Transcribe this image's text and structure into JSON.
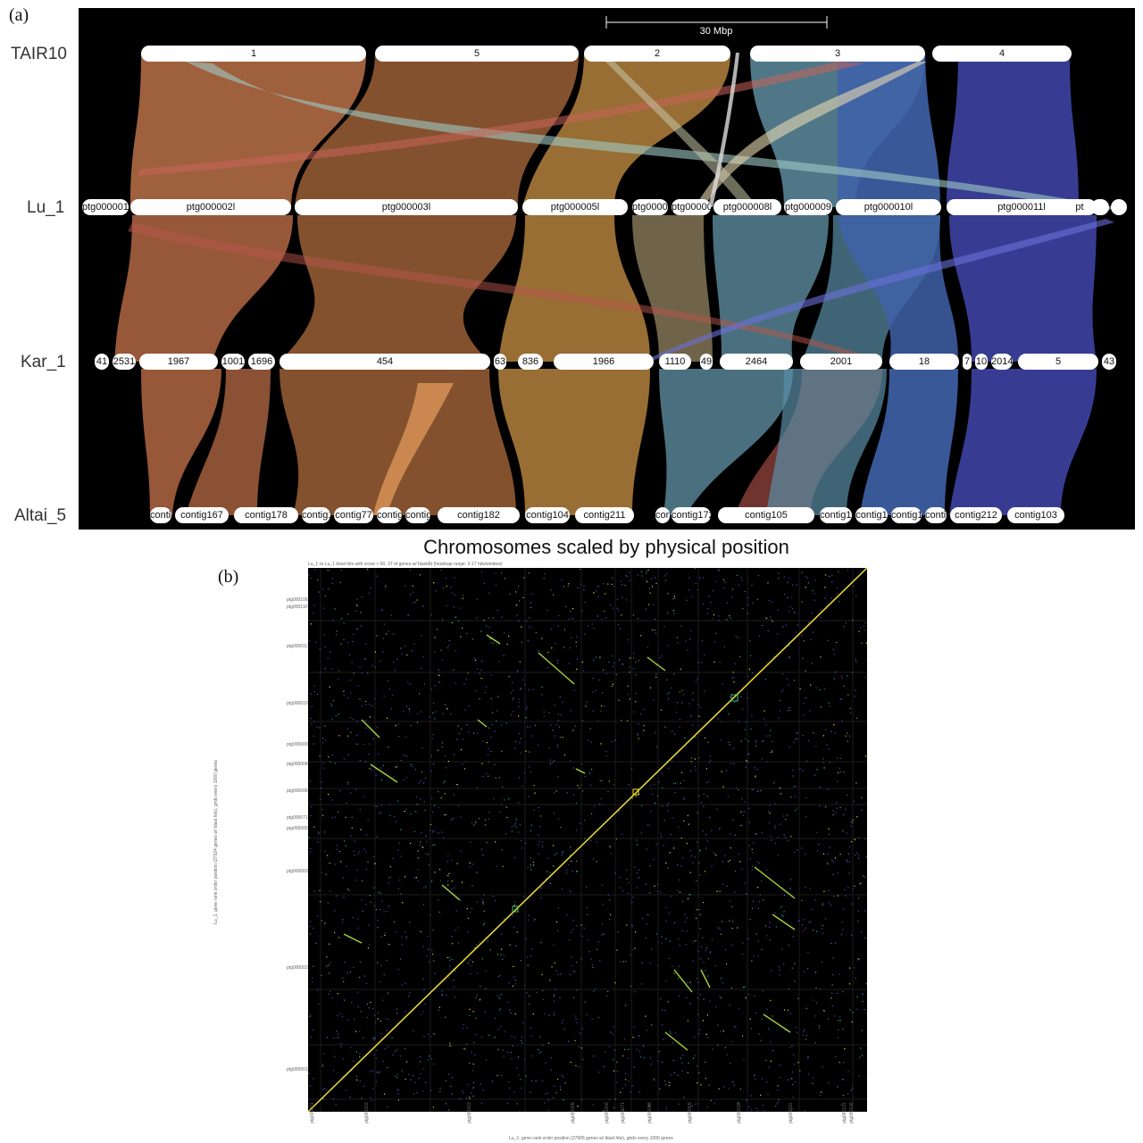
{
  "panel_a": {
    "label": "(a)",
    "scale_bar": "30 Mbp",
    "rows": [
      {
        "name": "TAIR10",
        "contigs": [
          "1",
          "5",
          "2",
          "3",
          "4"
        ]
      },
      {
        "name": "Lu_1",
        "contigs": [
          "ptg000001",
          "ptg000002l",
          "ptg000003l",
          "ptg000005l",
          "ptg00000",
          "ptg00000",
          "ptg000008l",
          "ptg000009",
          "ptg000010l",
          "ptg000011l",
          "pt",
          "",
          ""
        ]
      },
      {
        "name": "Kar_1",
        "contigs": [
          "41",
          "2531",
          "1967",
          "1001",
          "1696",
          "454",
          "63",
          "836",
          "1966",
          "1110",
          "49",
          "2464",
          "2001",
          "18",
          "7",
          "10",
          "2014",
          "5",
          "43"
        ]
      },
      {
        "name": "Altai_5",
        "contigs": [
          "contig1",
          "contig167",
          "contig178",
          "contig14",
          "contig77",
          "contig",
          "contig1",
          "contig182",
          "contig104",
          "contig211",
          "contig6",
          "contig172",
          "contig105",
          "contig18",
          "contig1",
          "contig1",
          "contig1",
          "contig212",
          "contig103"
        ]
      }
    ]
  },
  "panel_b": {
    "label": "(b)",
    "title": "Chromosomes scaled by physical position",
    "top_caption": "Lu_1 vs Lu_1 blast hits with score > 50, 37 of genes w/ blastdb (heatmap range: 2-17 hits/window)",
    "y_axis_label": "Lu_1: gene rank order position (27924 genes w/ blast hits), grids every 1000 genes",
    "x_axis_label": "Lu_1: gene rank order position (27665 genes w/ blast hits), grids every 1000 genes",
    "y_ticks": [
      "ptg000106",
      "ptg000110",
      "ptg000011",
      "ptg000010",
      "ptg000009",
      "ptg000008",
      "ptg000006",
      "ptg000071",
      "ptg000005",
      "ptg000003",
      "ptg000002",
      "ptg000001"
    ],
    "x_ticks": [
      "ptg000001",
      "ptg000002",
      "ptg000003",
      "ptg000005",
      "ptg000006",
      "ptg000071",
      "ptg000008",
      "ptg000009",
      "ptg000010",
      "ptg000011",
      "ptg000110",
      "ptg000106"
    ],
    "colors": {
      "background": "#000000",
      "diagonal": "#f0e030",
      "dots": [
        "#5a3fb8",
        "#2e7fb0",
        "#2fb37a",
        "#a6d63a",
        "#f0e030"
      ]
    }
  }
}
